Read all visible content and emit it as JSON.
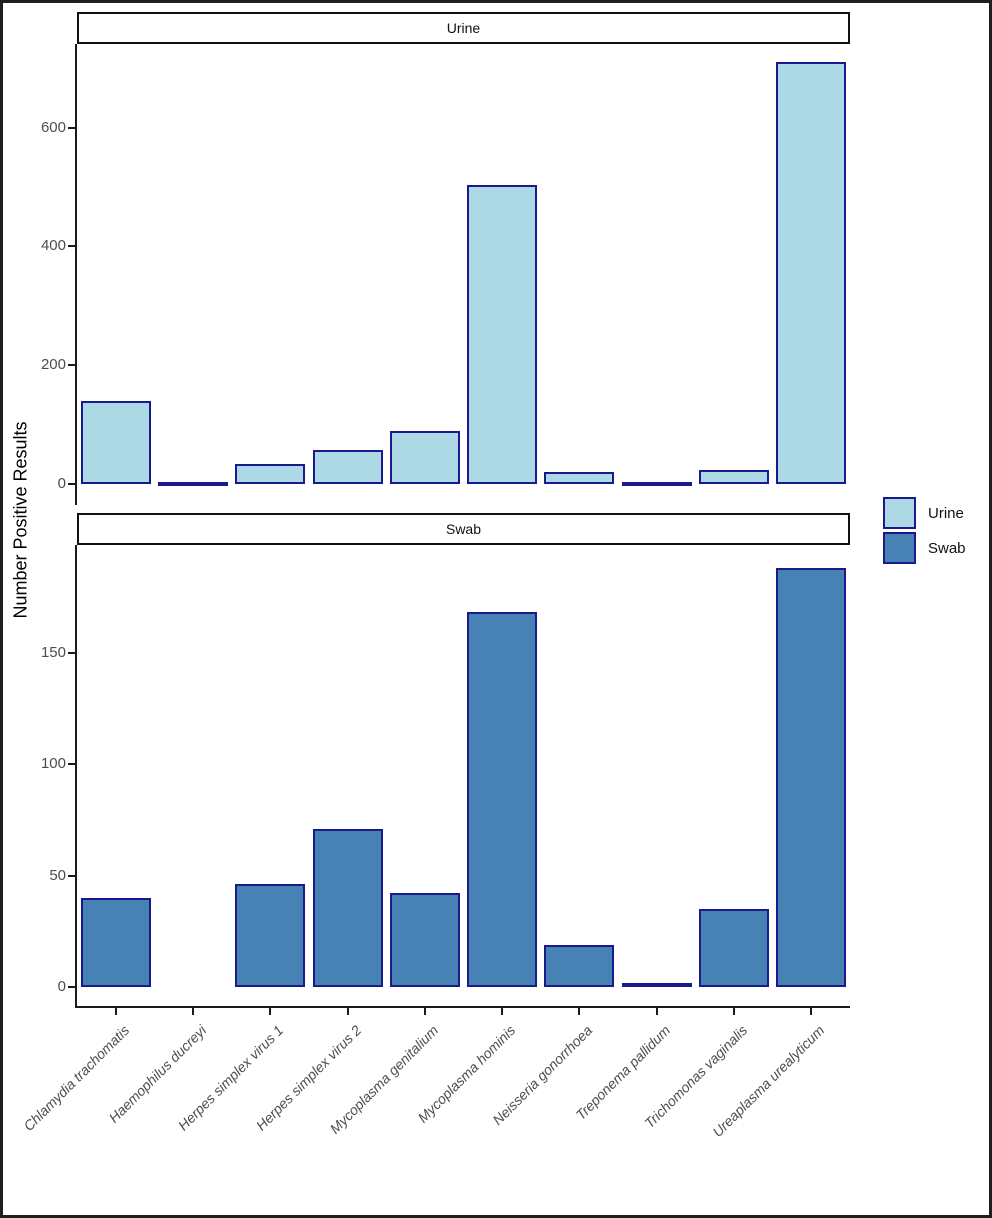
{
  "figure": {
    "ylabel": "Number Positive Results"
  },
  "chart_data": {
    "type": "bar",
    "faceted": true,
    "facet_titles": [
      "Urine",
      "Swab"
    ],
    "categories": [
      "Chlamydia trachomatis",
      "Haemophilus ducreyi",
      "Herpes simplex virus 1",
      "Herpes simplex virus 2",
      "Mycoplasma genitalium",
      "Mycoplasma hominis",
      "Neisseria gonorrhoea",
      "Treponema pallidum",
      "Trichomonas vaginalis",
      "Ureaplasma urealyticum"
    ],
    "series": [
      {
        "name": "Urine",
        "fill": "#ADD8E6",
        "values": [
          140,
          1,
          34,
          57,
          90,
          503,
          21,
          2,
          24,
          710
        ],
        "yticks": [
          0,
          200,
          400,
          600
        ],
        "ylim": [
          0,
          745
        ]
      },
      {
        "name": "Swab",
        "fill": "#4682B4",
        "values": [
          40,
          0,
          46,
          71,
          42,
          168,
          19,
          2,
          35,
          188
        ],
        "yticks": [
          0,
          50,
          100,
          150
        ],
        "ylim": [
          0,
          198
        ]
      }
    ],
    "bar_edge_color": "#1a1a8c",
    "title": "",
    "xlabel": "",
    "ylabel": "Number Positive Results",
    "legend_position": "right-center",
    "grid": false
  }
}
